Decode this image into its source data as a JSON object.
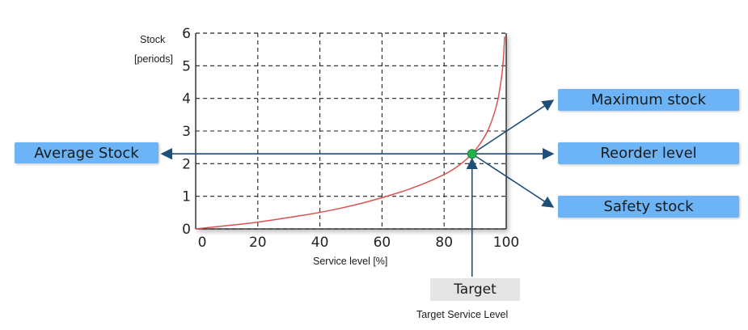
{
  "chart_data": {
    "type": "line",
    "ylabel_line1": "Stock",
    "ylabel_line2": "[periods]",
    "xlabel": "Service level [%]",
    "xlim": [
      0,
      100
    ],
    "ylim": [
      0,
      6
    ],
    "x_ticks": [
      0,
      20,
      40,
      60,
      80,
      100
    ],
    "y_ticks": [
      0,
      1,
      2,
      3,
      4,
      5,
      6
    ],
    "grid": true,
    "grid_style": "dashed",
    "series": [
      {
        "color": "#d9534f",
        "x": [
          0,
          10,
          20,
          30,
          40,
          50,
          60,
          70,
          80,
          85,
          88,
          90,
          93,
          95,
          97,
          98,
          99,
          99.5
        ],
        "y": [
          0.0,
          0.1,
          0.2,
          0.35,
          0.5,
          0.7,
          0.95,
          1.25,
          1.65,
          1.95,
          2.2,
          2.4,
          2.8,
          3.2,
          3.8,
          4.3,
          5.0,
          5.9
        ]
      }
    ],
    "target_point": {
      "x": 89,
      "y": 2.3,
      "color": "#22b14c"
    }
  },
  "annotations": {
    "average_stock": "Average Stock",
    "maximum_stock": "Maximum stock",
    "reorder_level": "Reorder level",
    "safety_stock": "Safety stock",
    "target": "Target",
    "target_service_level": "Target Service Level"
  },
  "colors": {
    "arrow": "#1f4e79",
    "label_box": "#6cb4f5",
    "target_box": "#e5e5e5",
    "grid": "#222222"
  }
}
